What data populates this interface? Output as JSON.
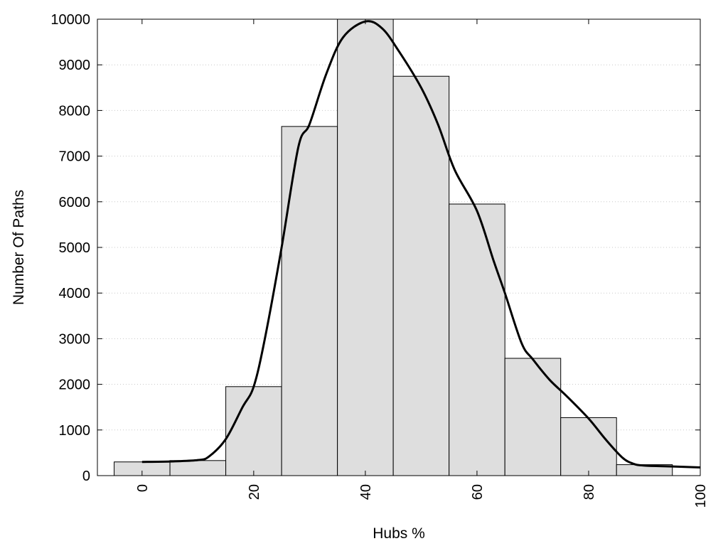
{
  "chart_data": {
    "type": "bar",
    "title": "",
    "xlabel": "Hubs %",
    "ylabel": "Number Of Paths",
    "xlim": [
      -8,
      100
    ],
    "ylim": [
      0,
      10000
    ],
    "x_ticks": [
      0,
      20,
      40,
      60,
      80,
      100
    ],
    "y_ticks": [
      0,
      1000,
      2000,
      3000,
      4000,
      5000,
      6000,
      7000,
      8000,
      9000,
      10000
    ],
    "grid": "horizontal-dotted",
    "bin_width": 10,
    "bar_color": "#dedede",
    "bar_edge_color": "#000000",
    "bins": [
      {
        "x": 0,
        "value": 300
      },
      {
        "x": 10,
        "value": 330
      },
      {
        "x": 20,
        "value": 1950
      },
      {
        "x": 30,
        "value": 7650
      },
      {
        "x": 40,
        "value": 10000
      },
      {
        "x": 50,
        "value": 8750
      },
      {
        "x": 60,
        "value": 5950
      },
      {
        "x": 70,
        "value": 2570
      },
      {
        "x": 80,
        "value": 1270
      },
      {
        "x": 90,
        "value": 240
      }
    ],
    "curve": {
      "type": "line",
      "color": "#000000",
      "points": [
        [
          0,
          300
        ],
        [
          5,
          310
        ],
        [
          10,
          340
        ],
        [
          12,
          420
        ],
        [
          15,
          800
        ],
        [
          18,
          1500
        ],
        [
          20,
          1950
        ],
        [
          22,
          3000
        ],
        [
          25,
          5000
        ],
        [
          28,
          7200
        ],
        [
          30,
          7700
        ],
        [
          33,
          8800
        ],
        [
          36,
          9600
        ],
        [
          40,
          9950
        ],
        [
          43,
          9800
        ],
        [
          46,
          9300
        ],
        [
          50,
          8500
        ],
        [
          53,
          7700
        ],
        [
          56,
          6700
        ],
        [
          60,
          5800
        ],
        [
          63,
          4700
        ],
        [
          65,
          4000
        ],
        [
          68,
          2900
        ],
        [
          70,
          2550
        ],
        [
          73,
          2100
        ],
        [
          76,
          1750
        ],
        [
          80,
          1250
        ],
        [
          83,
          800
        ],
        [
          86,
          400
        ],
        [
          88,
          260
        ],
        [
          90,
          220
        ],
        [
          95,
          200
        ],
        [
          100,
          180
        ]
      ]
    }
  }
}
